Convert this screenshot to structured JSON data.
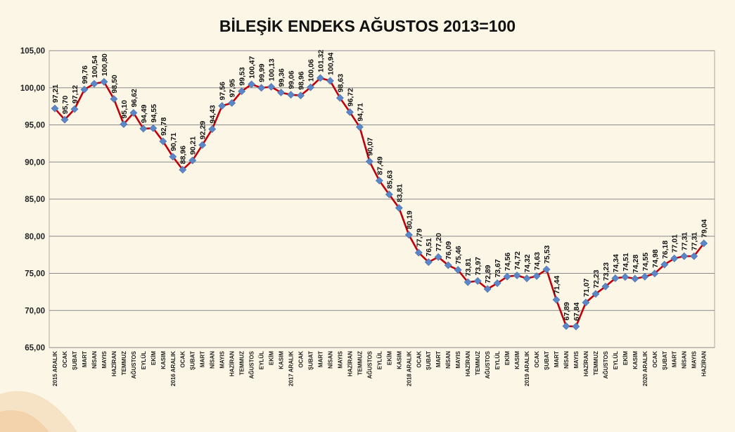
{
  "chart_data": {
    "type": "line",
    "title": "BİLEŞİK ENDEKS AĞUSTOS 2013=100",
    "xlabel": "",
    "ylabel": "",
    "ylim": [
      65,
      105
    ],
    "yticks": [
      "65,00",
      "70,00",
      "75,00",
      "80,00",
      "85,00",
      "90,00",
      "95,00",
      "100,00",
      "105,00"
    ],
    "grid": true,
    "line_color": "#c0000a",
    "marker_color": "#5b87c8",
    "categories": [
      "2015 ARALIK",
      "OCAK",
      "ŞUBAT",
      "MART",
      "NİSAN",
      "MAYIS",
      "HAZİRAN",
      "TEMMUZ",
      "AĞUSTOS",
      "EYLÜL",
      "EKİM",
      "KASIM",
      "2016 ARALIK",
      "OCAK",
      "ŞUBAT",
      "MART",
      "NİSAN",
      "MAYIS",
      "HAZİRAN",
      "TEMMUZ",
      "AĞUSTOS",
      "EYLÜL",
      "EKİM",
      "KASIM",
      "2017 ARALIK",
      "OCAK",
      "ŞUBAT",
      "MART",
      "NİSAN",
      "MAYIS",
      "HAZİRAN",
      "TEMMUZ",
      "AĞUSTOS",
      "EYLÜL",
      "EKİM",
      "KASIM",
      "2018 ARALIK",
      "OCAK",
      "ŞUBAT",
      "MART",
      "NİSAN",
      "MAYIS",
      "HAZİRAN",
      "TEMMUZ",
      "AĞUSTOS",
      "EYLÜL",
      "EKİM",
      "KASIM",
      "2019 ARALIK",
      "OCAK",
      "ŞUBAT",
      "MART",
      "NİSAN",
      "MAYIS",
      "HAZİRAN",
      "TEMMUZ",
      "AĞUSTOS",
      "EYLÜL",
      "EKİM",
      "KASIM",
      "2020 ARALIK",
      "OCAK",
      "ŞUBAT",
      "MART",
      "NİSAN",
      "MAYIS",
      "HAZİRAN"
    ],
    "values": [
      97.21,
      95.7,
      97.12,
      99.76,
      100.54,
      100.8,
      98.5,
      95.1,
      96.62,
      94.49,
      94.55,
      92.78,
      90.71,
      88.96,
      90.21,
      92.29,
      94.43,
      97.56,
      97.95,
      99.53,
      100.47,
      99.99,
      100.13,
      99.36,
      99.06,
      98.96,
      100.06,
      101.32,
      100.94,
      98.63,
      96.72,
      94.71,
      90.07,
      87.49,
      85.63,
      83.81,
      80.19,
      77.79,
      76.51,
      77.2,
      76.09,
      75.46,
      73.81,
      73.97,
      72.89,
      73.67,
      74.56,
      74.72,
      74.32,
      74.63,
      75.53,
      71.44,
      67.89,
      67.84,
      71.07,
      72.23,
      73.23,
      74.34,
      74.51,
      74.28,
      74.55,
      74.98,
      76.18,
      77.01,
      77.31,
      77.31,
      79.04
    ],
    "data_labels": [
      "97,21",
      "95,70",
      "97,12",
      "99,76",
      "100,54",
      "100,80",
      "98,50",
      "95,10",
      "96,62",
      "94,49",
      "94,55",
      "92,78",
      "90,71",
      "88,96",
      "90,21",
      "92,29",
      "94,43",
      "97,56",
      "97,95",
      "99,53",
      "100,47",
      "99,99",
      "100,13",
      "99,36",
      "99,06",
      "98,96",
      "100,06",
      "101,32",
      "100,94",
      "98,63",
      "96,72",
      "94,71",
      "90,07",
      "87,49",
      "85,63",
      "83,81",
      "80,19",
      "77,79",
      "76,51",
      "77,20",
      "76,09",
      "75,46",
      "73,81",
      "73,97",
      "72,89",
      "73,67",
      "74,56",
      "74,72",
      "74,32",
      "74,63",
      "75,53",
      "71,44",
      "67,89",
      "67,84",
      "71,07",
      "72,23",
      "73,23",
      "74,34",
      "74,51",
      "74,28",
      "74,55",
      "74,98",
      "76,18",
      "77,01",
      "77,31",
      "77,31",
      "79,04"
    ]
  }
}
